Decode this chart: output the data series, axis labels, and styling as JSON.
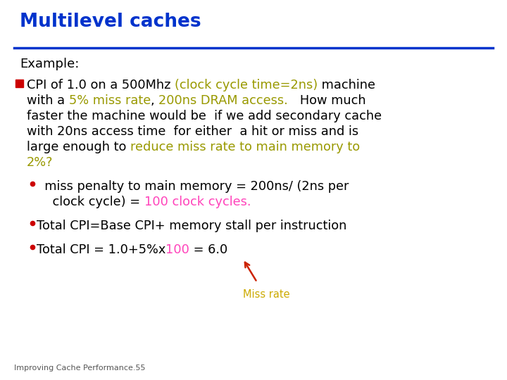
{
  "title": "Multilevel caches",
  "title_color": "#0033CC",
  "title_underline_color": "#0033CC",
  "background_color": "#FFFFFF",
  "example_label": "Example:",
  "bullet_square_color": "#CC0000",
  "bullet_circle_color": "#CC0000",
  "footer": "Improving Cache Performance.55",
  "footer_color": "#555555",
  "arrow_color": "#CC2200",
  "miss_rate_label": "Miss rate",
  "miss_rate_color": "#CCAA00",
  "yellow_color": "#999900",
  "magenta_color": "#FF44BB"
}
